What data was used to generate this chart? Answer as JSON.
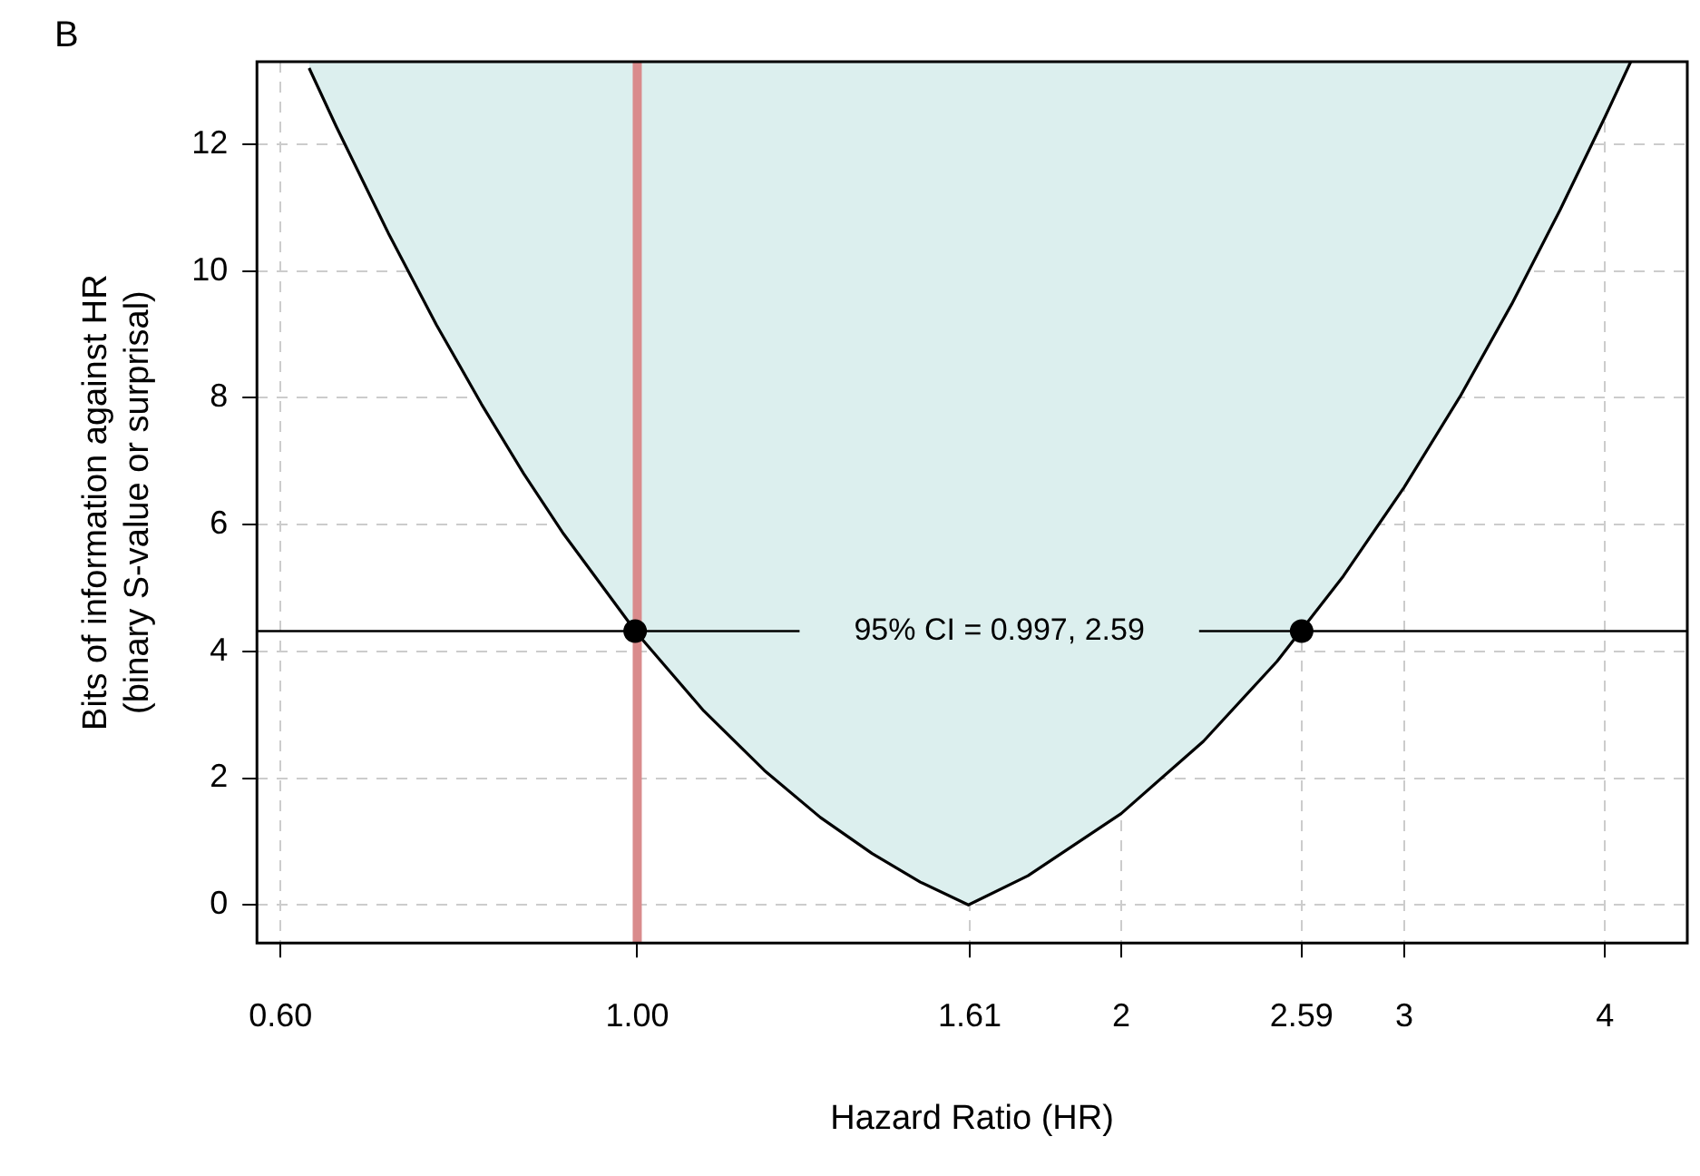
{
  "chart_data": {
    "type": "area",
    "title": "B",
    "xlabel": "Hazard Ratio (HR)",
    "ylabel": "Bits of information against HR\n(binary S-value or surprisal)",
    "log": "x",
    "xlim": [
      0.58,
      4.5
    ],
    "xticks": [
      {
        "value": 0.6,
        "label": "0.60"
      },
      {
        "value": 1,
        "label": "1.00"
      },
      1.61,
      2,
      2.59,
      3,
      4
    ],
    "ylim": [
      -0.6,
      13.3
    ],
    "yticks": [
      0,
      2,
      4,
      6,
      8,
      10,
      12
    ],
    "grid": true,
    "legend": false,
    "series": [
      {
        "color": "#dcefee",
        "x": [
          0.625,
          0.65,
          0.7,
          0.75,
          0.8,
          0.85,
          0.9,
          1.0,
          1.1,
          1.2,
          1.3,
          1.4,
          1.5,
          1.607,
          1.75,
          2.0,
          2.25,
          2.5,
          2.75,
          3.0,
          3.25,
          3.5,
          3.75,
          4.0,
          4.15
        ],
        "values": [
          13.2,
          12.27,
          10.6,
          9.15,
          7.9,
          6.8,
          5.85,
          4.28,
          3.06,
          2.12,
          1.38,
          0.81,
          0.36,
          0,
          0.46,
          1.44,
          2.58,
          3.84,
          5.19,
          6.59,
          8.02,
          9.48,
          10.96,
          12.43,
          13.3
        ]
      },
      {
        "type": "scatter",
        "color": "#000000",
        "marker": "circle",
        "x": [
          0.997,
          2.59
        ],
        "values": [
          4.32,
          4.32
        ]
      }
    ],
    "ref_lines": [
      {
        "axis": "x",
        "value": 1,
        "color": "#d98b8c"
      },
      {
        "axis": "y",
        "value": 4.32,
        "color": "#000000"
      }
    ],
    "annotations": [
      "95% CI = 0.997, 2.59"
    ]
  }
}
